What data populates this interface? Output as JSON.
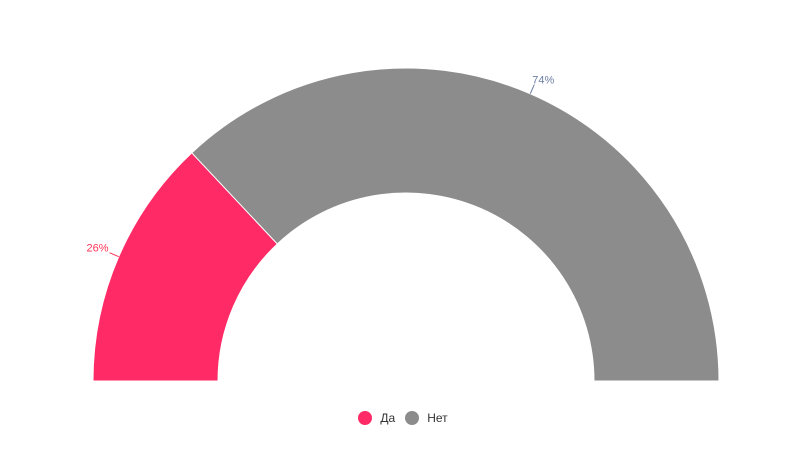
{
  "chart_data": {
    "type": "pie",
    "variant": "semi-donut",
    "categories": [
      "Да",
      "Нет"
    ],
    "values": [
      26,
      74
    ],
    "labels": [
      "26%",
      "74%"
    ],
    "colors": [
      "#ff2a66",
      "#8c8c8c"
    ],
    "label_colors": [
      "#ff3355",
      "#6b7ea3"
    ],
    "legend_position": "bottom"
  },
  "legend": [
    {
      "label": "Да",
      "color": "#ff2a66"
    },
    {
      "label": "Нет",
      "color": "#8c8c8c"
    }
  ]
}
